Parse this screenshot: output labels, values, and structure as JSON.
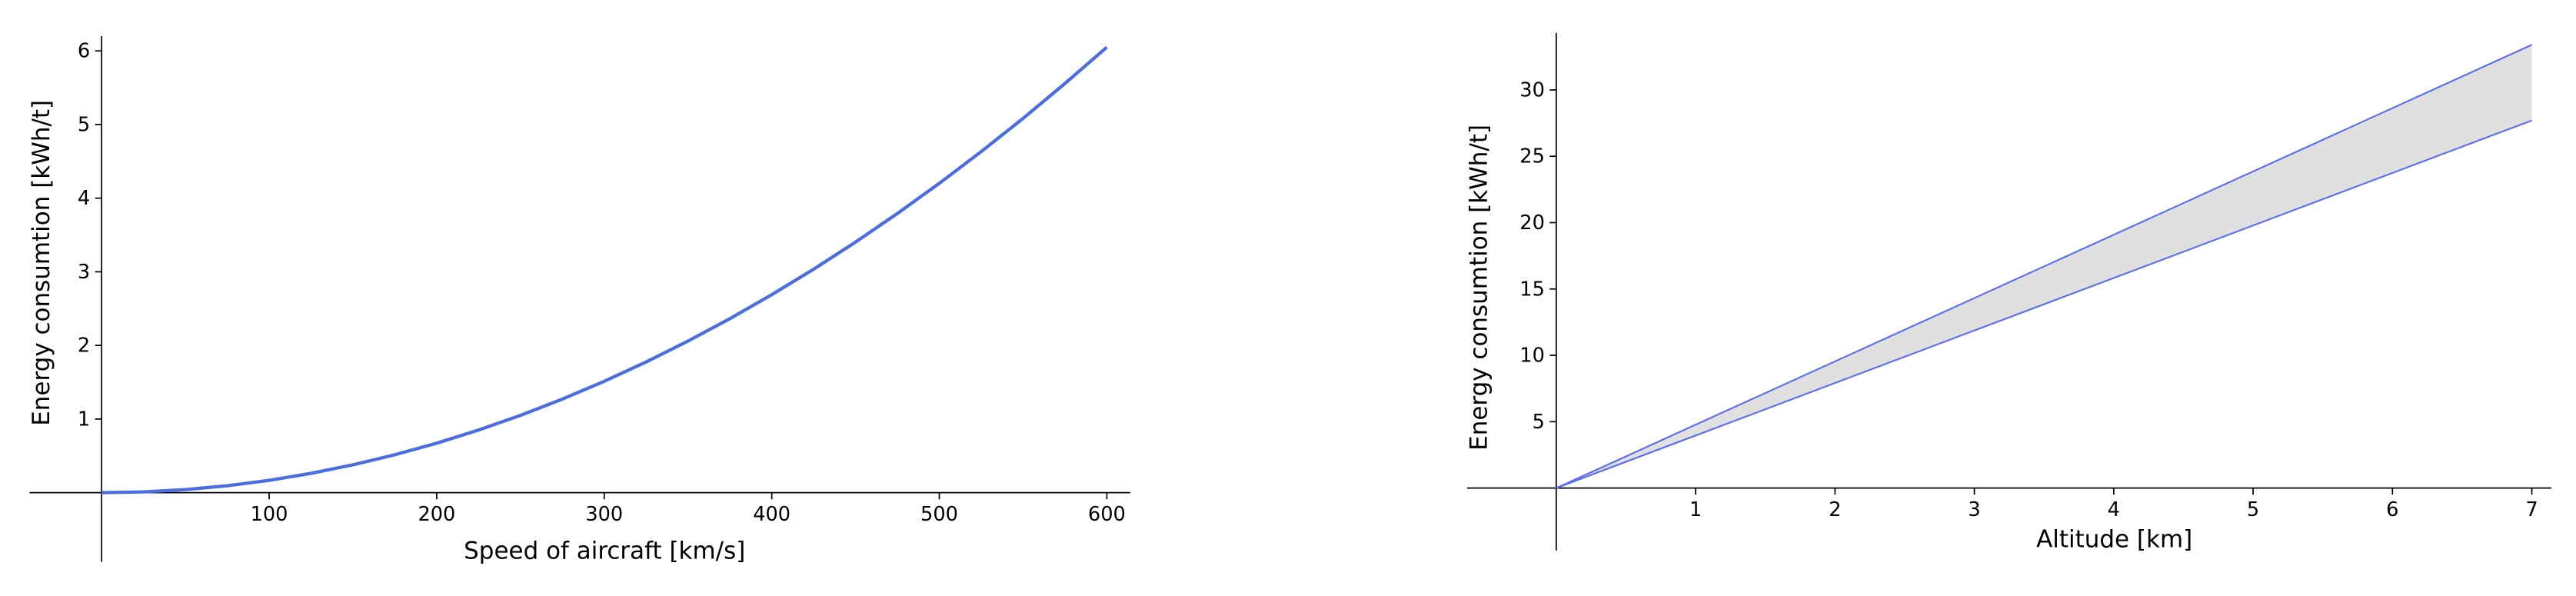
{
  "chart_data": [
    {
      "type": "line",
      "x_label": "Speed of aircraft [km/s]",
      "y_label": "Energy consumtion [kWh/t]",
      "x": [
        0,
        25,
        50,
        75,
        100,
        125,
        150,
        175,
        200,
        225,
        250,
        275,
        300,
        325,
        350,
        375,
        400,
        425,
        450,
        475,
        500,
        525,
        550,
        575,
        600
      ],
      "series": [
        {
          "color": "#4a6ee0",
          "values": [
            0,
            0.0105,
            0.042,
            0.0945,
            0.168,
            0.263,
            0.378,
            0.515,
            0.672,
            0.851,
            1.05,
            1.271,
            1.513,
            1.775,
            2.059,
            2.363,
            2.689,
            3.035,
            3.403,
            3.792,
            4.201,
            4.632,
            5.083,
            5.557,
            6.05
          ]
        }
      ],
      "xlim": [
        -43,
        614
      ],
      "ylim": [
        -0.94,
        6.2
      ],
      "xticks": [
        100,
        200,
        300,
        400,
        500,
        600
      ],
      "yticks": [
        1,
        2,
        3,
        4,
        5,
        6
      ]
    },
    {
      "type": "area",
      "x_label": "Altitude [km]",
      "y_label": "Energy consumtion [kWh/t]",
      "x": [
        0,
        7
      ],
      "series": [
        {
          "color": "#5c6ef0",
          "values": [
            0,
            33.4
          ]
        },
        {
          "color": "#5c6ef0",
          "values": [
            0,
            27.7
          ]
        }
      ],
      "fill_color": "#e0e0e0",
      "xlim": [
        -0.64,
        7.14
      ],
      "ylim": [
        -4.7,
        34.3
      ],
      "xticks": [
        1,
        2,
        3,
        4,
        5,
        6,
        7
      ],
      "yticks": [
        5,
        10,
        15,
        20,
        25,
        30
      ]
    }
  ]
}
